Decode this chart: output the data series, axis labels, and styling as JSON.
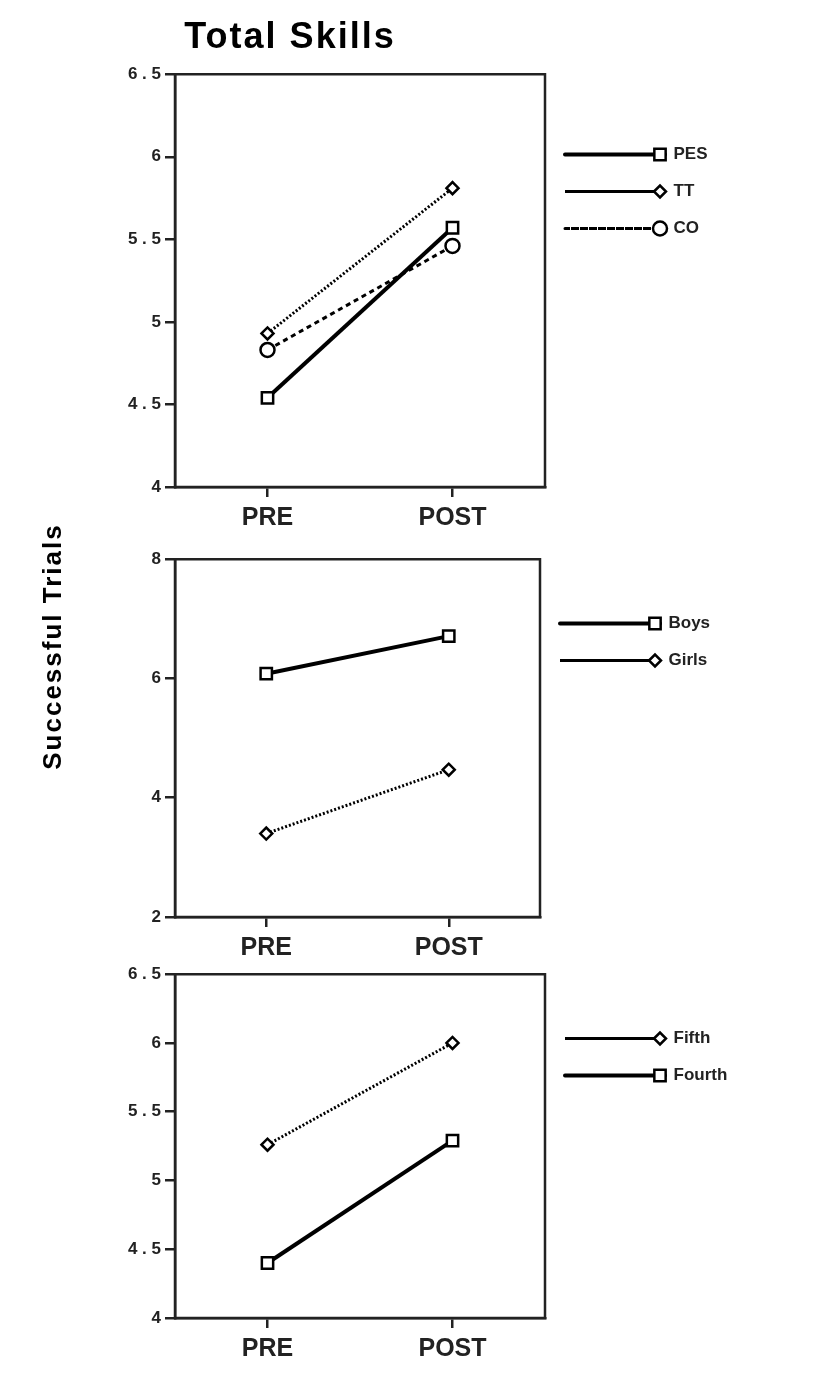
{
  "chart_data": [
    {
      "type": "line",
      "title": "Total Skills",
      "categories": [
        "PRE",
        "POST"
      ],
      "ylim": [
        4,
        6.5
      ],
      "yticks": [
        4,
        4.5,
        5,
        5.5,
        6,
        6.5
      ],
      "legend": "right",
      "series": [
        {
          "name": "PES",
          "color": "#000000",
          "values": [
            4.54,
            5.57
          ],
          "marker": "square",
          "line_style": "solid"
        },
        {
          "name": "TT",
          "color": "#000000",
          "values": [
            4.93,
            5.81
          ],
          "marker": "diamond",
          "line_style": "dotted"
        },
        {
          "name": "CO",
          "color": "#000000",
          "values": [
            4.83,
            5.46
          ],
          "marker": "circle",
          "line_style": "dashed"
        }
      ]
    },
    {
      "type": "line",
      "ylabel": "Successful Trials",
      "categories": [
        "PRE",
        "POST"
      ],
      "ylim": [
        2,
        8
      ],
      "yticks": [
        2,
        4,
        6,
        8
      ],
      "legend": "right",
      "series": [
        {
          "name": "Boys",
          "color": "#000000",
          "values": [
            6.08,
            6.71
          ],
          "marker": "square",
          "line_style": "solid"
        },
        {
          "name": "Girls",
          "color": "#000000",
          "values": [
            3.4,
            4.47
          ],
          "marker": "diamond",
          "line_style": "dotted"
        }
      ]
    },
    {
      "type": "line",
      "categories": [
        "PRE",
        "POST"
      ],
      "ylim": [
        4,
        6.5
      ],
      "yticks": [
        4,
        4.5,
        5,
        5.5,
        6,
        6.5
      ],
      "legend": "right",
      "series": [
        {
          "name": "Fifth",
          "color": "#000000",
          "values": [
            5.26,
            6.0
          ],
          "marker": "diamond",
          "line_style": "dotted"
        },
        {
          "name": "Fourth",
          "color": "#000000",
          "values": [
            4.4,
            5.29
          ],
          "marker": "square",
          "line_style": "solid"
        }
      ]
    }
  ]
}
